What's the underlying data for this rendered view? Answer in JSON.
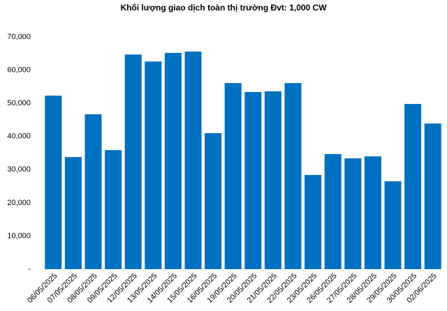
{
  "chart_data": {
    "type": "bar",
    "title": "Khối lượng giao dịch toàn thị trường Đvt: 1,000 CW",
    "categories": [
      "06/05/2025",
      "07/05/2025",
      "08/05/2025",
      "09/05/2025",
      "12/05/2025",
      "13/05/2025",
      "14/05/2025",
      "15/05/2025",
      "16/05/2025",
      "19/05/2025",
      "20/05/2025",
      "21/05/2025",
      "22/05/2025",
      "23/05/2025",
      "26/05/2025",
      "27/05/2025",
      "28/05/2025",
      "29/05/2025",
      "30/05/2025",
      "02/06/2025"
    ],
    "values": [
      52300,
      33800,
      46700,
      35900,
      64700,
      62600,
      65200,
      65600,
      41000,
      56100,
      53400,
      53600,
      56100,
      28400,
      34700,
      33400,
      34000,
      26500,
      49800,
      43900
    ],
    "color": "#0070c0",
    "ylim": [
      0,
      70000
    ],
    "yticks": [
      {
        "value": 0,
        "label": "-"
      },
      {
        "value": 10000,
        "label": "10,000"
      },
      {
        "value": 20000,
        "label": "20,000"
      },
      {
        "value": 30000,
        "label": "30,000"
      },
      {
        "value": 40000,
        "label": "40,000"
      },
      {
        "value": 50000,
        "label": "50,000"
      },
      {
        "value": 60000,
        "label": "60,000"
      },
      {
        "value": 70000,
        "label": "70,000"
      }
    ],
    "grid": false
  }
}
